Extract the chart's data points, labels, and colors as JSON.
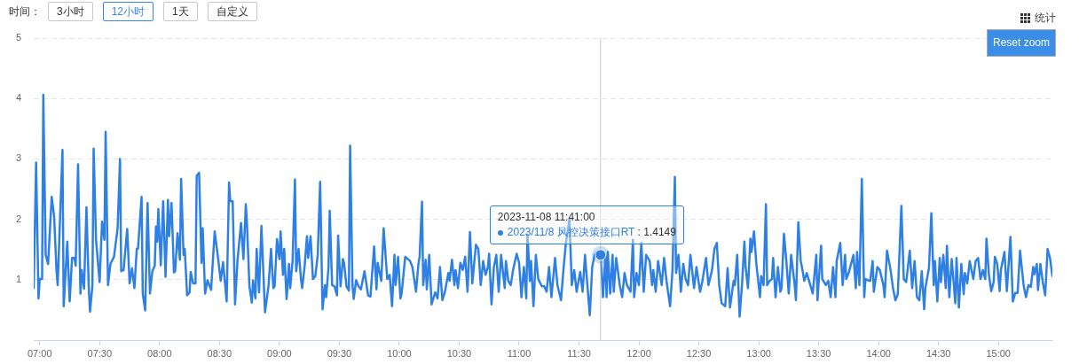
{
  "chart_data": {
    "type": "line",
    "annotations": [
      "时间：",
      "3小时",
      "12小时",
      "1天",
      "自定义",
      "统计",
      "Reset zoom",
      "2023-11-08 11:41:00",
      ": 1.4149"
    ],
    "xlim": [
      6.95,
      15.45
    ],
    "xticks": [
      {
        "value": 7,
        "label": "07:00"
      },
      {
        "value": 7.5,
        "label": "07:30"
      },
      {
        "value": 8,
        "label": "08:00"
      },
      {
        "value": 8.5,
        "label": "08:30"
      },
      {
        "value": 9,
        "label": "09:00"
      },
      {
        "value": 9.5,
        "label": "09:30"
      },
      {
        "value": 10,
        "label": "10:00"
      },
      {
        "value": 10.5,
        "label": "10:30"
      },
      {
        "value": 11,
        "label": "11:00"
      },
      {
        "value": 11.5,
        "label": "11:30"
      },
      {
        "value": 12,
        "label": "12:00"
      },
      {
        "value": 12.5,
        "label": "12:30"
      },
      {
        "value": 13,
        "label": "13:00"
      },
      {
        "value": 13.5,
        "label": "13:30"
      },
      {
        "value": 14,
        "label": "14:00"
      },
      {
        "value": 14.5,
        "label": "14:30"
      },
      {
        "value": 15,
        "label": "15:00"
      }
    ],
    "ylim": [
      0,
      5
    ],
    "yticks": [
      1,
      2,
      3,
      4,
      5
    ],
    "grid": "y",
    "ref_lines": [
      {
        "axis": "x",
        "value": 11.68,
        "color": "#cccccc"
      }
    ],
    "series": [
      {
        "name": "2023/11/8 风控决策接口RT",
        "color": "#2f80e4",
        "x": [
          6.95,
          6.97,
          6.99,
          7.0,
          7.02,
          7.03,
          7.05,
          7.07,
          7.1,
          7.12,
          7.14,
          7.15,
          7.19,
          7.2,
          7.23,
          7.25,
          7.27,
          7.29,
          7.3,
          7.32,
          7.34,
          7.35,
          7.37,
          7.39,
          7.41,
          7.42,
          7.44,
          7.45,
          7.47,
          7.5,
          7.52,
          7.54,
          7.55,
          7.57,
          7.59,
          7.62,
          7.65,
          7.67,
          7.68,
          7.7,
          7.73,
          7.75,
          7.77,
          7.79,
          7.81,
          7.82,
          7.85,
          7.86,
          7.88,
          7.9,
          7.92,
          7.94,
          7.96,
          7.97,
          7.98,
          7.99,
          8.01,
          8.03,
          8.05,
          8.07,
          8.08,
          8.1,
          8.12,
          8.13,
          8.15,
          8.17,
          8.18,
          8.2,
          8.21,
          8.23,
          8.25,
          8.26,
          8.28,
          8.3,
          8.31,
          8.33,
          8.35,
          8.36,
          8.38,
          8.4,
          8.43,
          8.46,
          8.49,
          8.51,
          8.53,
          8.56,
          8.58,
          8.59,
          8.61,
          8.63,
          8.65,
          8.68,
          8.7,
          8.72,
          8.73,
          8.75,
          8.77,
          8.78,
          8.8,
          8.81,
          8.83,
          8.85,
          8.86,
          8.88,
          8.91,
          8.93,
          8.95,
          8.96,
          8.98,
          9.0,
          9.01,
          9.03,
          9.04,
          9.06,
          9.08,
          9.09,
          9.11,
          9.13,
          9.14,
          9.16,
          9.18,
          9.19,
          9.21,
          9.23,
          9.24,
          9.26,
          9.28,
          9.3,
          9.32,
          9.34,
          9.36,
          9.38,
          9.39,
          9.41,
          9.42,
          9.44,
          9.46,
          9.48,
          9.49,
          9.51,
          9.53,
          9.54,
          9.56,
          9.58,
          9.59,
          9.61,
          9.62,
          9.64,
          9.66,
          9.68,
          9.71,
          9.72,
          9.74,
          9.76,
          9.79,
          9.81,
          9.82,
          9.85,
          9.87,
          9.9,
          9.92,
          9.94,
          9.96,
          9.97,
          9.99,
          10.01,
          10.02,
          10.05,
          10.09,
          10.11,
          10.14,
          10.16,
          10.17,
          10.19,
          10.2,
          10.22,
          10.23,
          10.25,
          10.27,
          10.3,
          10.32,
          10.34,
          10.36,
          10.38,
          10.41,
          10.42,
          10.44,
          10.46,
          10.47,
          10.49,
          10.51,
          10.53,
          10.55,
          10.57,
          10.59,
          10.61,
          10.62,
          10.64,
          10.66,
          10.68,
          10.7,
          10.72,
          10.74,
          10.75,
          10.77,
          10.79,
          10.81,
          10.83,
          10.85,
          10.88,
          10.89,
          10.91,
          10.93,
          10.95,
          10.98,
          11.0,
          11.02,
          11.04,
          11.06,
          11.07,
          11.09,
          11.1,
          11.12,
          11.14,
          11.16,
          11.19,
          11.21,
          11.23,
          11.25,
          11.27,
          11.3,
          11.32,
          11.35,
          11.37,
          11.39,
          11.42,
          11.44,
          11.46,
          11.48,
          11.51,
          11.53,
          11.55,
          11.57,
          11.59,
          11.61,
          11.63,
          11.65,
          11.68,
          11.7,
          11.72,
          11.73,
          11.74,
          11.76,
          11.78,
          11.79,
          11.81,
          11.84,
          11.86,
          11.88,
          11.9,
          11.93,
          11.95,
          11.96,
          11.98,
          12.0,
          12.02,
          12.04,
          12.06,
          12.09,
          12.11,
          12.12,
          12.14,
          12.16,
          12.19,
          12.21,
          12.23,
          12.26,
          12.28,
          12.3,
          12.31,
          12.33,
          12.35,
          12.37,
          12.39,
          12.41,
          12.43,
          12.46,
          12.48,
          12.51,
          12.53,
          12.56,
          12.58,
          12.61,
          12.63,
          12.65,
          12.67,
          12.69,
          12.72,
          12.74,
          12.76,
          12.79,
          12.8,
          12.82,
          12.84,
          12.86,
          12.88,
          12.89,
          12.91,
          12.93,
          12.94,
          12.96,
          12.98,
          13.01,
          13.02,
          13.04,
          13.06,
          13.07,
          13.09,
          13.11,
          13.12,
          13.14,
          13.16,
          13.18,
          13.19,
          13.21,
          13.23,
          13.25,
          13.27,
          13.3,
          13.31,
          13.33,
          13.35,
          13.36,
          13.38,
          13.4,
          13.43,
          13.45,
          13.48,
          13.49,
          13.52,
          13.53,
          13.56,
          13.58,
          13.6,
          13.62,
          13.64,
          13.65,
          13.68,
          13.7,
          13.72,
          13.73,
          13.75,
          13.77,
          13.79,
          13.81,
          13.82,
          13.84,
          13.86,
          13.88,
          13.89,
          13.91,
          13.93,
          13.95,
          13.96,
          13.99,
          14.01,
          14.04,
          14.05,
          14.07,
          14.1,
          14.12,
          14.14,
          14.16,
          14.19,
          14.21,
          14.23,
          14.26,
          14.28,
          14.3,
          14.32,
          14.34,
          14.36,
          14.38,
          14.39,
          14.42,
          14.44,
          14.46,
          14.47,
          14.49,
          14.51,
          14.52,
          14.54,
          14.56,
          14.57,
          14.59,
          14.61,
          14.64,
          14.65,
          14.67,
          14.69,
          14.71,
          14.72,
          14.74,
          14.76,
          14.79,
          14.81,
          14.83,
          14.85,
          14.87,
          14.89,
          14.9,
          14.92,
          14.94,
          14.96,
          14.97,
          14.99,
          15.01,
          15.02,
          15.05,
          15.07,
          15.1,
          15.12,
          15.14,
          15.16,
          15.18,
          15.21,
          15.23,
          15.25,
          15.27,
          15.29,
          15.3,
          15.32,
          15.33,
          15.35,
          15.37,
          15.39,
          15.41,
          15.43,
          15.45
        ],
        "values": [
          0.86,
          2.94,
          0.69,
          1.01,
          1.01,
          4.06,
          1.41,
          1.26,
          2.37,
          2.05,
          1.16,
          0.91,
          3.15,
          0.56,
          1.63,
          0.64,
          1.36,
          1.36,
          1.23,
          2.91,
          0.77,
          1.16,
          0.85,
          2.2,
          0.83,
          0.47,
          0.91,
          3.17,
          1.66,
          0.96,
          1.96,
          1.66,
          3.45,
          0.91,
          1.26,
          1.38,
          1.85,
          3.0,
          1.14,
          1.16,
          1.84,
          0.94,
          1.19,
          0.86,
          1.51,
          1.51,
          2.37,
          0.77,
          0.49,
          2.27,
          0.77,
          1.14,
          1.23,
          1.88,
          1.63,
          2.17,
          1.24,
          2.3,
          1.05,
          2.32,
          1.72,
          2.27,
          1.12,
          1.14,
          1.77,
          1.33,
          2.67,
          1.41,
          1.51,
          0.74,
          0.79,
          1.13,
          0.94,
          0.94,
          2.72,
          2.77,
          1.28,
          1.85,
          0.77,
          0.99,
          0.83,
          1.8,
          1.33,
          0.98,
          1.29,
          0.64,
          2.61,
          2.3,
          2.3,
          0.59,
          1.31,
          1.94,
          1.34,
          2.25,
          1.9,
          0.89,
          0.62,
          0.99,
          0.69,
          1.51,
          0.79,
          1.89,
          1.41,
          0.46,
          0.91,
          1.51,
          0.86,
          0.89,
          1.67,
          1.34,
          1.8,
          1.08,
          1.51,
          0.68,
          1.26,
          0.86,
          1.31,
          2.66,
          1.14,
          1.51,
          1.01,
          0.86,
          1.21,
          1.72,
          1.36,
          1.72,
          1.01,
          1.06,
          1.41,
          2.62,
          0.51,
          0.91,
          0.71,
          1.21,
          2.14,
          0.91,
          0.89,
          0.74,
          1.73,
          0.89,
          1.34,
          1.27,
          0.89,
          0.82,
          3.22,
          0.91,
          0.68,
          0.99,
          0.89,
          0.84,
          1.14,
          1.01,
          0.74,
          0.72,
          1.55,
          0.84,
          1.28,
          0.98,
          1.85,
          1.01,
          1.08,
          0.56,
          1.41,
          0.91,
          1.38,
          0.69,
          0.77,
          1.38,
          1.31,
          1.21,
          0.8,
          1.26,
          1.38,
          2.29,
          0.91,
          1.33,
          0.84,
          1.41,
          0.59,
          0.79,
          0.69,
          1.21,
          0.66,
          0.79,
          1.11,
          0.98,
          1.33,
          0.91,
          1.16,
          0.86,
          1.28,
          1.16,
          1.38,
          0.8,
          1.79,
          0.94,
          1.16,
          1.58,
          1.51,
          0.91,
          1.31,
          1.08,
          1.21,
          1.43,
          0.59,
          1.21,
          1.41,
          0.8,
          1.41,
          0.86,
          1.31,
          0.98,
          0.91,
          1.16,
          1.43,
          1.28,
          0.71,
          1.21,
          0.69,
          1.75,
          0.98,
          1.31,
          0.56,
          1.41,
          1.01,
          0.89,
          0.89,
          0.8,
          1.21,
          0.71,
          1.36,
          0.91,
          0.66,
          1.16,
          1.6,
          2.0,
          0.91,
          1.16,
          0.8,
          1.13,
          0.8,
          1.41,
          0.91,
          0.41,
          1.21,
          1.41,
          1.46,
          1.41,
          0.71,
          1.41,
          0.71,
          1.46,
          0.77,
          1.41,
          0.8,
          1.36,
          0.91,
          0.71,
          1.11,
          0.91,
          0.8,
          1.66,
          0.71,
          1.11,
          0.91,
          1.61,
          0.8,
          1.41,
          1.31,
          0.91,
          1.16,
          0.8,
          1.31,
          0.91,
          1.36,
          0.98,
          0.56,
          1.16,
          2.7,
          1.11,
          1.41,
          0.8,
          1.26,
          1.01,
          0.91,
          1.41,
          0.86,
          1.21,
          0.8,
          0.98,
          1.36,
          0.91,
          1.16,
          1.51,
          1.61,
          0.91,
          0.61,
          0.56,
          1.19,
          0.54,
          0.98,
          0.91,
          1.41,
          0.39,
          0.91,
          1.63,
          1.21,
          0.86,
          1.68,
          1.46,
          1.8,
          1.26,
          0.71,
          1.06,
          0.91,
          2.25,
          0.91,
          0.98,
          1.01,
          1.36,
          0.71,
          1.21,
          0.8,
          0.86,
          1.76,
          1.31,
          0.77,
          1.41,
          0.91,
          0.66,
          1.95,
          1.31,
          1.21,
          0.98,
          1.11,
          0.91,
          0.77,
          1.41,
          0.66,
          1.56,
          1.01,
          0.91,
          0.98,
          0.71,
          1.21,
          0.71,
          1.31,
          1.61,
          0.91,
          1.41,
          1.01,
          1.11,
          1.26,
          1.41,
          0.86,
          1.46,
          0.91,
          2.67,
          0.71,
          1.01,
          0.99,
          0.98,
          1.31,
          0.8,
          1.21,
          1.16,
          0.91,
          0.71,
          1.48,
          1.16,
          0.86,
          0.66,
          0.76,
          2.22,
          1.01,
          0.96,
          1.48,
          0.86,
          1.31,
          0.71,
          0.66,
          1.14,
          0.51,
          0.86,
          1.19,
          2.1,
          0.91,
          1.31,
          0.64,
          1.36,
          0.96,
          1.41,
          0.86,
          1.56,
          0.71,
          1.34,
          0.61,
          1.36,
          0.54,
          1.26,
          0.76,
          1.11,
          0.94,
          1.31,
          1.01,
          1.31,
          1.36,
          1.01,
          1.16,
          1.01,
          1.68,
          1.09,
          0.81,
          0.96,
          1.38,
          1.26,
          0.81,
          1.16,
          1.46,
          0.81,
          1.71,
          0.64,
          0.78,
          0.78,
          1.48,
          0.91,
          0.71,
          0.91,
          0.88,
          1.21,
          1.09,
          1.26,
          0.83,
          1.26,
          0.96,
          0.74,
          1.51,
          1.36,
          1.06
        ]
      }
    ]
  }
}
